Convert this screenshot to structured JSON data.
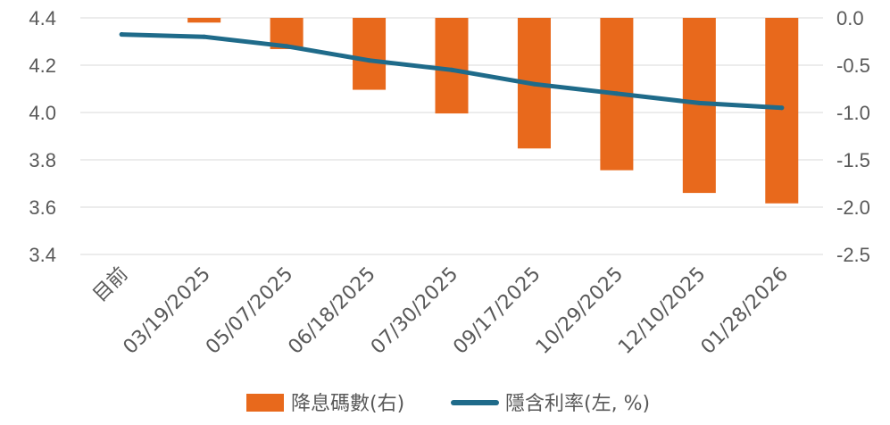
{
  "chart_data": {
    "type": "bar+line",
    "categories": [
      "目前",
      "03/19/2025",
      "05/07/2025",
      "06/18/2025",
      "07/30/2025",
      "09/17/2025",
      "10/29/2025",
      "12/10/2025",
      "01/28/2026"
    ],
    "series": [
      {
        "name": "降息碼數(右)",
        "type": "bar",
        "axis": "right",
        "color": "#E8691C",
        "values": [
          null,
          -0.05,
          -0.33,
          -0.76,
          -1.01,
          -1.38,
          -1.61,
          -1.85,
          -1.96
        ]
      },
      {
        "name": "隱含利率(左, %)",
        "type": "line",
        "axis": "left",
        "color": "#1F6B8A",
        "values": [
          4.33,
          4.32,
          4.28,
          4.22,
          4.18,
          4.12,
          4.08,
          4.04,
          4.02
        ]
      }
    ],
    "left_axis": {
      "min": 3.4,
      "max": 4.4,
      "ticks": [
        "3.4",
        "3.6",
        "3.8",
        "4.0",
        "4.2",
        "4.4"
      ]
    },
    "right_axis": {
      "min": -2.5,
      "max": 0.0,
      "ticks": [
        "-2.5",
        "-2.0",
        "-1.5",
        "-1.0",
        "-0.5",
        "0.0"
      ]
    },
    "grid": true,
    "legend_position": "bottom"
  }
}
